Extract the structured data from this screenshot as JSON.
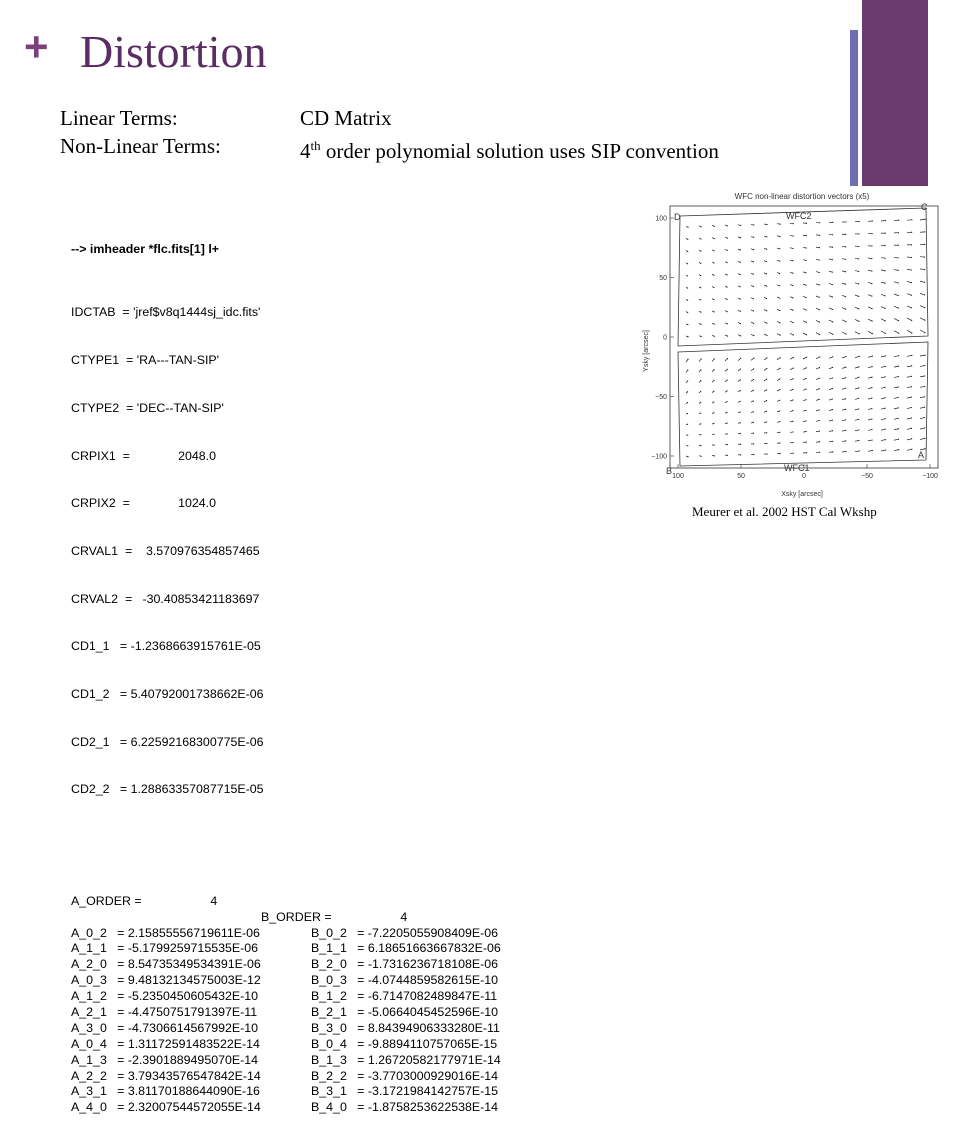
{
  "slide": {
    "plus": "+",
    "title": "Distortion"
  },
  "terms": [
    {
      "label": "Linear Terms:",
      "value": "CD Matrix"
    },
    {
      "label": "Non-Linear Terms:",
      "value_pre": "4",
      "value_sup": "th",
      "value_post": " order polynomial solution uses SIP convention"
    }
  ],
  "header": {
    "command": "--> imheader *flc.fits[1] l+",
    "lines": [
      "IDCTAB  = 'jref$v8q1444sj_idc.fits'",
      "CTYPE1  = 'RA---TAN-SIP'",
      "CTYPE2  = 'DEC--TAN-SIP'",
      "CRPIX1  =              2048.0",
      "CRPIX2  =              1024.0",
      "CRVAL1  =    3.570976354857465",
      "CRVAL2  =   -30.40853421183697",
      "CD1_1   = -1.2368663915761E-05",
      "CD1_2   = 5.40792001738662E-06",
      "CD2_1   = 6.22592168300775E-06",
      "CD2_2   = 1.28863357087715E-05"
    ],
    "order_a": "A_ORDER =                    4",
    "order_b": "B_ORDER =                    4",
    "coefficients": [
      {
        "a": "A_0_2   = 2.15855556719611E-06",
        "b": "B_0_2   = -7.2205055908409E-06"
      },
      {
        "a": "A_1_1   = -5.1799259715535E-06",
        "b": "B_1_1   = 6.18651663667832E-06"
      },
      {
        "a": "A_2_0   = 8.54735349534391E-06",
        "b": "B_2_0   = -1.7316236718108E-06"
      },
      {
        "a": "A_0_3   = 9.48132134575003E-12",
        "b": "B_0_3   = -4.0744859582615E-10"
      },
      {
        "a": "A_1_2   = -5.2350450605432E-10",
        "b": "B_1_2   = -6.7147082489847E-11"
      },
      {
        "a": "A_2_1   = -4.4750751791397E-11",
        "b": "B_2_1   = -5.0664045452596E-10"
      },
      {
        "a": "A_3_0   = -4.7306614567992E-10",
        "b": "B_3_0   = 8.84394906333280E-11"
      },
      {
        "a": "A_0_4   = 1.31172591483522E-14",
        "b": "B_0_4   = -9.8894110757065E-15"
      },
      {
        "a": "A_1_3   = -2.3901889495070E-14",
        "b": "B_1_3   = 1.26720582177971E-14"
      },
      {
        "a": "A_2_2   = 3.79343576547842E-14",
        "b": "B_2_2   = -3.7703000929016E-14"
      },
      {
        "a": "A_3_1   = 3.81170188644090E-16",
        "b": "B_3_1   = -3.1721984142757E-15"
      },
      {
        "a": "A_4_0   = 2.32007544572055E-14",
        "b": "B_4_0   = -1.8758253622538E-14"
      }
    ]
  },
  "plot": {
    "title": "WFC non-linear distortion vectors (x5)",
    "xlabel": "Xsky [arcsec]",
    "ylabel": "Ysky [arcsec]",
    "xticks": [
      "100",
      "50",
      "0",
      "−50",
      "−100"
    ],
    "yticks": [
      "100",
      "50",
      "0",
      "−50",
      "−100"
    ],
    "chip_top": "WFC2",
    "chip_bottom": "WFC1",
    "corner_d": "D",
    "corner_c": "C",
    "corner_b": "B",
    "corner_a": "A"
  },
  "caption": "Meurer et al. 2002 HST Cal Wkshp",
  "colors": {
    "title": "#5a2d63",
    "plus": "#7b3f7b",
    "bar_thin": "#6d6db0",
    "bar_thick": "#6b3a6e"
  }
}
